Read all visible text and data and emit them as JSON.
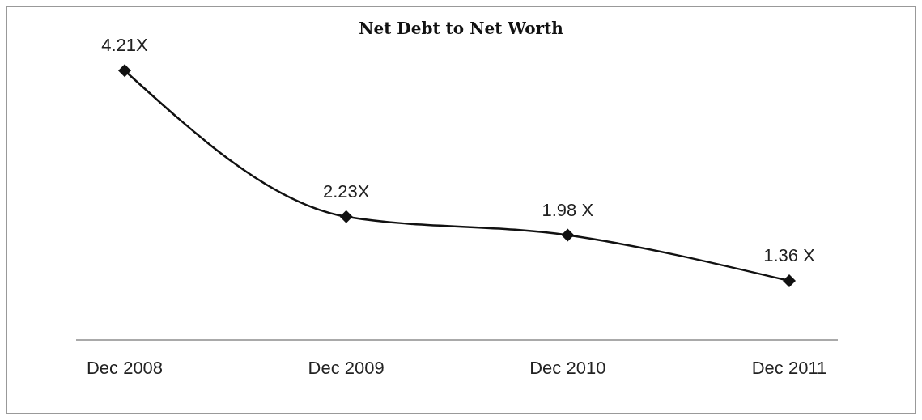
{
  "chart_data": {
    "type": "line",
    "title": "Net Debt to Net Worth",
    "categories": [
      "Dec 2008",
      "Dec 2009",
      "Dec 2010",
      "Dec 2011"
    ],
    "series": [
      {
        "color": "#111111",
        "values": [
          4.21,
          2.23,
          1.98,
          1.36
        ],
        "value_labels": [
          "4.21X",
          "2.23X",
          "1.98 X",
          "1.36 X"
        ]
      }
    ],
    "marker": "diamond",
    "line_style": "solid",
    "grid": false,
    "legend": false
  }
}
